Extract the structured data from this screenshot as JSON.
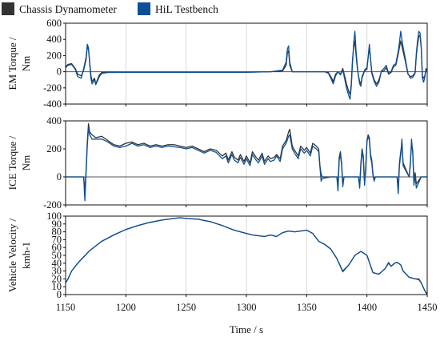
{
  "legend": [
    {
      "label": "Chassis Dynamometer",
      "color": "#333333"
    },
    {
      "label": "HiL Testbench",
      "color": "#0d4f96"
    }
  ],
  "xlabel": "Time / s",
  "chart_data": [
    {
      "type": "line",
      "ylabel_lines": [
        "EM Torque /",
        "Nm"
      ],
      "xlim": [
        1150,
        1450
      ],
      "ylim": [
        -400,
        600
      ],
      "yticks": [
        -400,
        -200,
        0,
        200,
        400,
        600
      ],
      "xticks": [
        1150,
        1200,
        1250,
        1300,
        1350,
        1400,
        1450
      ],
      "grid": true,
      "series": [
        {
          "name": "Chassis Dynamometer",
          "color": "#333333",
          "x": [
            1150,
            1152,
            1155,
            1158,
            1160,
            1163,
            1165,
            1167,
            1168,
            1169,
            1170,
            1171,
            1172,
            1174,
            1175,
            1178,
            1180,
            1185,
            1200,
            1250,
            1300,
            1320,
            1330,
            1333,
            1334,
            1335,
            1336,
            1338,
            1345,
            1360,
            1365,
            1368,
            1370,
            1372,
            1374,
            1376,
            1378,
            1380,
            1382,
            1383,
            1385,
            1386,
            1387,
            1388,
            1389,
            1390,
            1391,
            1392,
            1393,
            1394,
            1395,
            1396,
            1398,
            1400,
            1402,
            1404,
            1406,
            1408,
            1410,
            1412,
            1414,
            1416,
            1418,
            1420,
            1422,
            1424,
            1425,
            1426,
            1427,
            1428,
            1430,
            1432,
            1434,
            1436,
            1438,
            1440,
            1441,
            1442,
            1443,
            1444,
            1445,
            1446,
            1447,
            1448,
            1449,
            1450
          ],
          "y": [
            60,
            90,
            100,
            40,
            -30,
            -50,
            20,
            150,
            300,
            280,
            120,
            -40,
            -120,
            -80,
            -150,
            -40,
            -10,
            -5,
            -5,
            -5,
            -5,
            0,
            10,
            80,
            230,
            260,
            80,
            0,
            0,
            0,
            0,
            -10,
            -60,
            -120,
            -30,
            0,
            -30,
            40,
            -80,
            -150,
            -250,
            -280,
            -150,
            150,
            300,
            380,
            200,
            50,
            -50,
            -120,
            -150,
            -60,
            20,
            50,
            300,
            0,
            -100,
            -150,
            -100,
            0,
            10,
            50,
            -30,
            -10,
            60,
            80,
            150,
            220,
            300,
            380,
            250,
            120,
            -30,
            -60,
            -50,
            -10,
            200,
            330,
            440,
            450,
            300,
            -50,
            -80,
            -50,
            30,
            0
          ]
        },
        {
          "name": "HiL Testbench",
          "color": "#0d4f96",
          "x": [
            1150,
            1152,
            1155,
            1158,
            1160,
            1163,
            1165,
            1167,
            1168,
            1169,
            1170,
            1171,
            1172,
            1174,
            1175,
            1178,
            1180,
            1185,
            1200,
            1250,
            1300,
            1320,
            1330,
            1333,
            1334,
            1335,
            1336,
            1338,
            1345,
            1360,
            1365,
            1368,
            1370,
            1372,
            1374,
            1376,
            1378,
            1380,
            1382,
            1383,
            1385,
            1386,
            1387,
            1388,
            1389,
            1390,
            1391,
            1392,
            1393,
            1394,
            1395,
            1396,
            1398,
            1400,
            1402,
            1404,
            1406,
            1408,
            1410,
            1412,
            1414,
            1416,
            1418,
            1420,
            1422,
            1424,
            1425,
            1426,
            1427,
            1428,
            1430,
            1432,
            1434,
            1436,
            1438,
            1440,
            1441,
            1442,
            1443,
            1444,
            1445,
            1446,
            1447,
            1448,
            1449,
            1450
          ],
          "y": [
            50,
            80,
            90,
            30,
            -60,
            -80,
            40,
            180,
            340,
            300,
            100,
            -80,
            -150,
            -100,
            -160,
            -60,
            -20,
            -10,
            -8,
            -8,
            -8,
            0,
            20,
            120,
            280,
            320,
            120,
            0,
            0,
            0,
            0,
            -20,
            -80,
            -150,
            -50,
            0,
            -40,
            20,
            -120,
            -200,
            -300,
            -340,
            -180,
            100,
            350,
            500,
            250,
            80,
            -60,
            -150,
            -180,
            -80,
            10,
            30,
            340,
            -20,
            -120,
            -180,
            -130,
            10,
            40,
            80,
            -20,
            0,
            80,
            100,
            180,
            250,
            360,
            500,
            300,
            150,
            -20,
            -80,
            -70,
            -20,
            230,
            380,
            500,
            480,
            320,
            -80,
            -130,
            -70,
            40,
            0
          ]
        }
      ]
    },
    {
      "type": "line",
      "ylabel_lines": [
        "ICE Torque /",
        "Nm"
      ],
      "xlim": [
        1150,
        1450
      ],
      "ylim": [
        -200,
        400
      ],
      "yticks": [
        -200,
        0,
        200,
        400
      ],
      "xticks": [
        1150,
        1200,
        1250,
        1300,
        1350,
        1400,
        1450
      ],
      "grid": true,
      "series": [
        {
          "name": "Chassis Dynamometer",
          "color": "#333333",
          "x": [
            1150,
            1165,
            1166,
            1167,
            1168,
            1169,
            1170,
            1172,
            1175,
            1180,
            1185,
            1190,
            1195,
            1200,
            1205,
            1210,
            1215,
            1220,
            1225,
            1230,
            1235,
            1240,
            1245,
            1250,
            1255,
            1260,
            1265,
            1270,
            1275,
            1280,
            1283,
            1285,
            1288,
            1290,
            1293,
            1295,
            1298,
            1300,
            1303,
            1305,
            1308,
            1310,
            1313,
            1315,
            1318,
            1320,
            1323,
            1325,
            1328,
            1330,
            1333,
            1335,
            1336,
            1338,
            1340,
            1343,
            1345,
            1348,
            1350,
            1353,
            1355,
            1358,
            1360,
            1361,
            1362,
            1363,
            1370,
            1375,
            1376,
            1377,
            1378,
            1379,
            1380,
            1381,
            1382,
            1383,
            1390,
            1393,
            1394,
            1395,
            1396,
            1397,
            1398,
            1399,
            1400,
            1401,
            1402,
            1403,
            1404,
            1405,
            1406,
            1407,
            1420,
            1425,
            1426,
            1427,
            1428,
            1429,
            1430,
            1435,
            1436,
            1437,
            1438,
            1439,
            1440,
            1441,
            1445,
            1450
          ],
          "y": [
            0,
            0,
            -100,
            50,
            250,
            380,
            320,
            300,
            280,
            290,
            260,
            230,
            220,
            240,
            250,
            230,
            240,
            220,
            230,
            220,
            230,
            230,
            220,
            210,
            220,
            200,
            180,
            200,
            190,
            150,
            170,
            120,
            180,
            140,
            120,
            160,
            110,
            150,
            100,
            180,
            140,
            120,
            170,
            110,
            150,
            130,
            140,
            160,
            130,
            220,
            260,
            320,
            340,
            220,
            190,
            150,
            220,
            190,
            210,
            170,
            240,
            220,
            200,
            80,
            20,
            0,
            0,
            0,
            -50,
            140,
            180,
            100,
            -50,
            0,
            0,
            0,
            0,
            0,
            -60,
            100,
            200,
            150,
            -40,
            80,
            260,
            300,
            280,
            160,
            120,
            20,
            -20,
            0,
            0,
            0,
            -80,
            100,
            180,
            230,
            100,
            0,
            100,
            230,
            190,
            -30,
            30,
            -50,
            0,
            0
          ]
        },
        {
          "name": "HiL Testbench",
          "color": "#0d4f96",
          "x": [
            1150,
            1165,
            1166,
            1167,
            1168,
            1169,
            1170,
            1172,
            1175,
            1180,
            1185,
            1190,
            1195,
            1200,
            1205,
            1210,
            1215,
            1220,
            1225,
            1230,
            1235,
            1240,
            1245,
            1250,
            1255,
            1260,
            1265,
            1270,
            1275,
            1280,
            1283,
            1285,
            1288,
            1290,
            1293,
            1295,
            1298,
            1300,
            1303,
            1305,
            1308,
            1310,
            1313,
            1315,
            1318,
            1320,
            1323,
            1325,
            1328,
            1330,
            1333,
            1335,
            1336,
            1338,
            1340,
            1343,
            1345,
            1348,
            1350,
            1353,
            1355,
            1358,
            1360,
            1361,
            1362,
            1363,
            1370,
            1375,
            1376,
            1377,
            1378,
            1379,
            1380,
            1381,
            1382,
            1383,
            1390,
            1393,
            1394,
            1395,
            1396,
            1397,
            1398,
            1399,
            1400,
            1401,
            1402,
            1403,
            1404,
            1405,
            1406,
            1407,
            1420,
            1425,
            1426,
            1427,
            1428,
            1429,
            1430,
            1435,
            1436,
            1437,
            1438,
            1439,
            1440,
            1441,
            1445,
            1450
          ],
          "y": [
            0,
            0,
            -170,
            30,
            220,
            350,
            300,
            270,
            270,
            270,
            250,
            220,
            210,
            220,
            240,
            220,
            230,
            210,
            220,
            210,
            220,
            215,
            210,
            200,
            210,
            190,
            170,
            190,
            175,
            130,
            150,
            100,
            160,
            120,
            100,
            140,
            90,
            130,
            80,
            160,
            120,
            100,
            150,
            90,
            130,
            110,
            120,
            150,
            110,
            200,
            240,
            290,
            300,
            200,
            170,
            130,
            200,
            170,
            190,
            150,
            220,
            200,
            180,
            70,
            -30,
            -10,
            0,
            0,
            -100,
            120,
            160,
            80,
            -70,
            0,
            0,
            0,
            0,
            0,
            -80,
            80,
            180,
            130,
            -60,
            60,
            250,
            290,
            260,
            140,
            100,
            10,
            -30,
            0,
            0,
            0,
            -120,
            80,
            160,
            270,
            80,
            0,
            80,
            270,
            170,
            -60,
            10,
            -80,
            0,
            0
          ]
        }
      ]
    },
    {
      "type": "line",
      "ylabel_lines": [
        "Vehicle Velocity /",
        "kmh-1"
      ],
      "xlim": [
        1150,
        1450
      ],
      "ylim": [
        0,
        100
      ],
      "yticks": [
        0,
        10,
        20,
        30,
        40,
        50,
        60,
        70,
        80,
        90,
        100
      ],
      "xticks": [
        1150,
        1200,
        1250,
        1300,
        1350,
        1400,
        1450
      ],
      "grid": true,
      "series": [
        {
          "name": "Chassis Dynamometer",
          "color": "#333333",
          "x": [
            1150,
            1152,
            1155,
            1160,
            1165,
            1170,
            1180,
            1190,
            1200,
            1210,
            1220,
            1230,
            1240,
            1245,
            1250,
            1260,
            1270,
            1280,
            1290,
            1300,
            1305,
            1310,
            1315,
            1320,
            1325,
            1330,
            1335,
            1340,
            1345,
            1350,
            1355,
            1360,
            1365,
            1370,
            1375,
            1380,
            1385,
            1390,
            1395,
            1400,
            1405,
            1410,
            1415,
            1418,
            1420,
            1423,
            1425,
            1428,
            1430,
            1435,
            1440,
            1443,
            1445,
            1448,
            1450
          ],
          "y": [
            15,
            20,
            30,
            40,
            48,
            56,
            68,
            76,
            83,
            88,
            92,
            95,
            97,
            98,
            97,
            96,
            93,
            88,
            82,
            78,
            76,
            75,
            74,
            76,
            74,
            79,
            81,
            80,
            81,
            82,
            78,
            68,
            64,
            58,
            46,
            30,
            38,
            50,
            55,
            50,
            28,
            26,
            33,
            40,
            36,
            40,
            41,
            38,
            30,
            22,
            20,
            20,
            15,
            5,
            0
          ]
        },
        {
          "name": "HiL Testbench",
          "color": "#0d4f96",
          "x": [
            1150,
            1152,
            1155,
            1160,
            1165,
            1170,
            1180,
            1190,
            1200,
            1210,
            1220,
            1230,
            1240,
            1245,
            1250,
            1260,
            1270,
            1280,
            1290,
            1300,
            1305,
            1310,
            1315,
            1320,
            1325,
            1330,
            1335,
            1340,
            1345,
            1350,
            1355,
            1360,
            1365,
            1370,
            1375,
            1380,
            1385,
            1390,
            1395,
            1400,
            1405,
            1410,
            1415,
            1418,
            1420,
            1423,
            1425,
            1428,
            1430,
            1435,
            1440,
            1443,
            1445,
            1448,
            1450
          ],
          "y": [
            15,
            20,
            30,
            40,
            48,
            56,
            68,
            76,
            83,
            88,
            92,
            95,
            97,
            98,
            97,
            96,
            93,
            88,
            82,
            78,
            76,
            75,
            74,
            76,
            74,
            79,
            81,
            80,
            81,
            82,
            78,
            68,
            64,
            58,
            46,
            29,
            38,
            50,
            55,
            50,
            28,
            26,
            33,
            41,
            36,
            40,
            41,
            38,
            30,
            22,
            20,
            19,
            15,
            5,
            0
          ]
        }
      ]
    }
  ]
}
